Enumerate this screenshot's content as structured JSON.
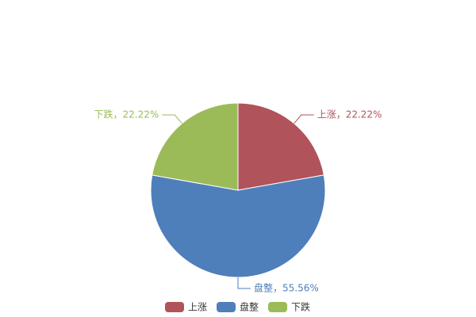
{
  "chart_data": {
    "type": "pie",
    "categories": [
      "上涨",
      "盘整",
      "下跌"
    ],
    "values": [
      22.22,
      55.56,
      22.22
    ],
    "value_labels": [
      "上涨，22.22%",
      "盘整，55.56%",
      "下跌，22.22%"
    ],
    "colors": [
      "#b0535a",
      "#4e7fbb",
      "#9bbb59"
    ],
    "legend": "bottom"
  }
}
